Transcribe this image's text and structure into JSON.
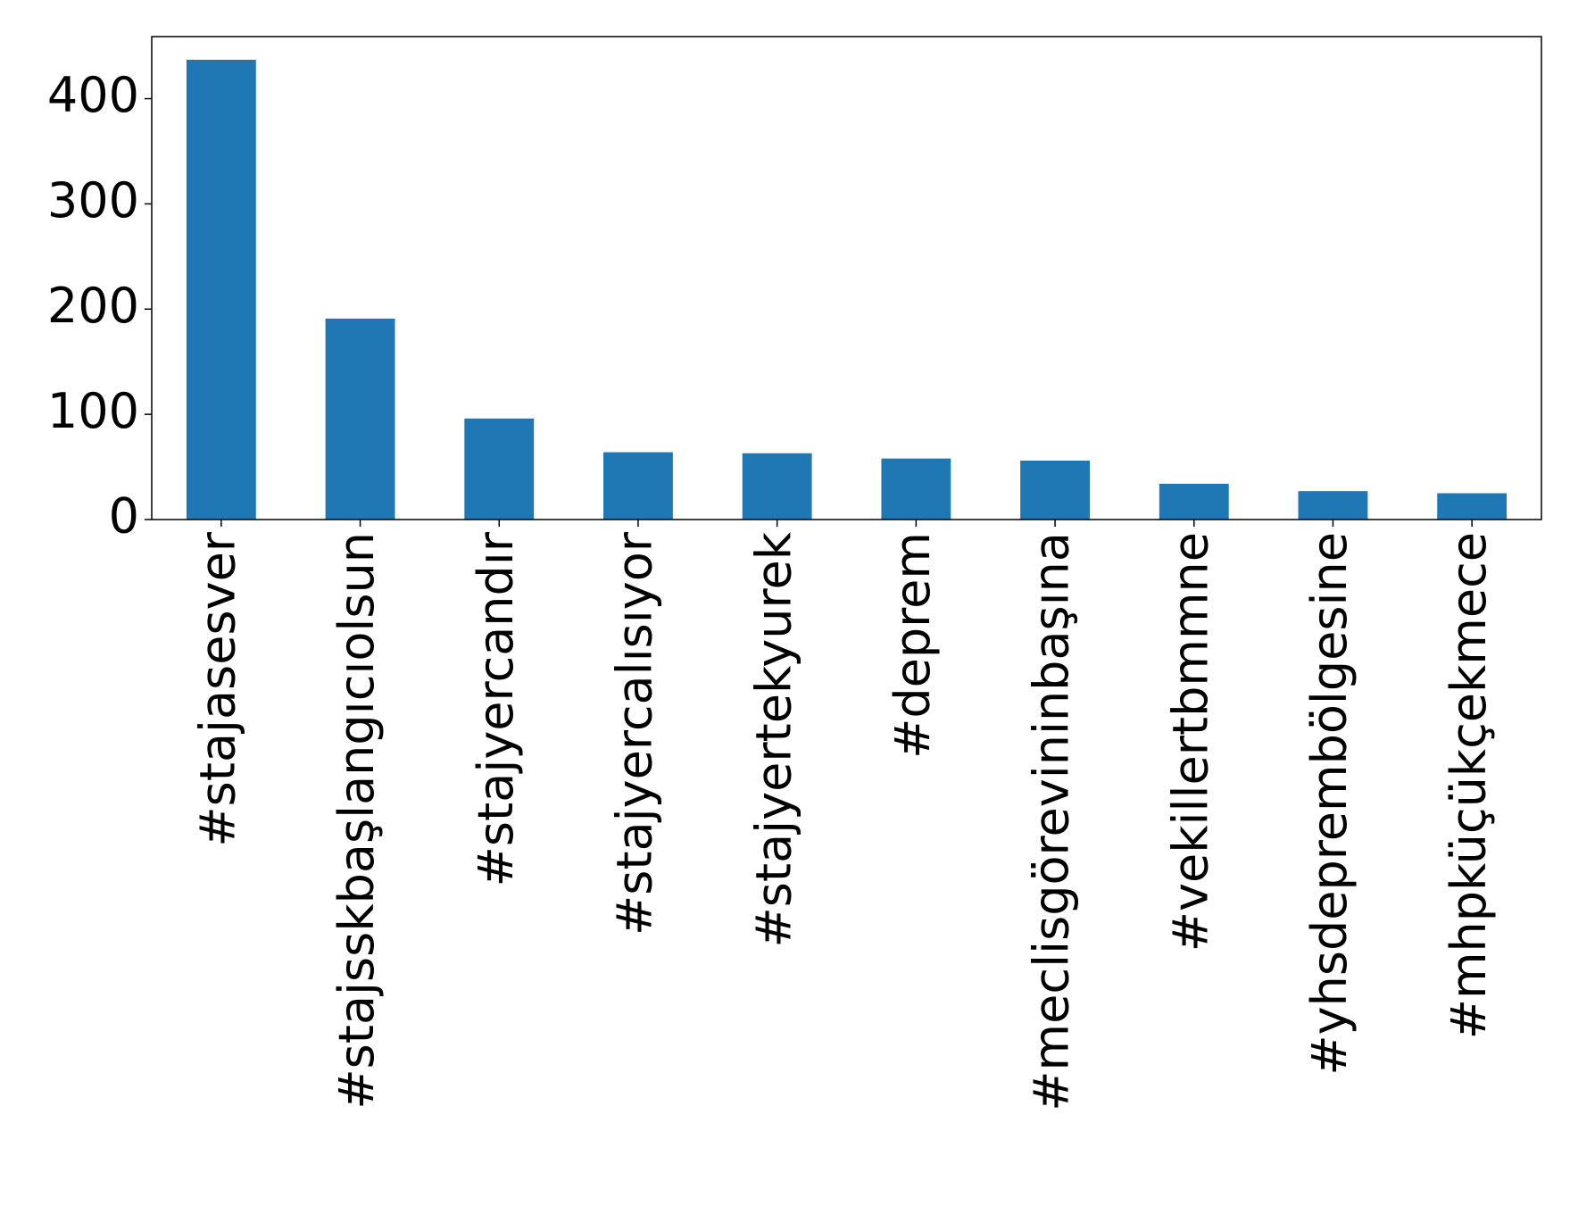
{
  "chart_data": {
    "type": "bar",
    "categories": [
      "#stajasesver",
      "#stajsskbaşlangıcıolsun",
      "#stajyercandır",
      "#stajyercalısıyor",
      "#stajyertekyurek",
      "#deprem",
      "#meclisgörevininbaşına",
      "#vekillertbmmne",
      "#yhsdeprembölgesine",
      "#mhpküçükçekmece"
    ],
    "values": [
      437,
      191,
      96,
      64,
      63,
      58,
      56,
      34,
      27,
      25
    ],
    "color": "#1f77b4",
    "ylim": [
      0,
      459
    ],
    "yticks": [
      0,
      100,
      200,
      300,
      400
    ],
    "grid": false
  }
}
